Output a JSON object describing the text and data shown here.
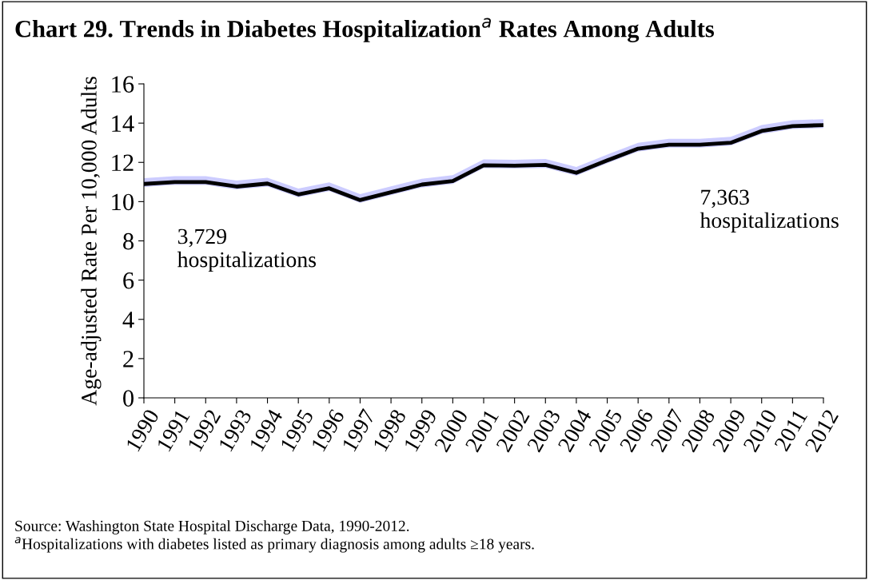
{
  "chart_data": {
    "type": "line",
    "title": "Chart 29. Trends in Diabetes Hospitalization$^{a}$ Rates Among Adults",
    "ylabel": "Age-adjusted Rate Per 10,000 Adults",
    "categories": [
      "1990",
      "1991",
      "1992",
      "1993",
      "1994",
      "1995",
      "1996",
      "1997",
      "1998",
      "1999",
      "2000",
      "2001",
      "2002",
      "2003",
      "2004",
      "2005",
      "2006",
      "2007",
      "2008",
      "2009",
      "2010",
      "2011",
      "2012"
    ],
    "series": [
      {
        "color": "#000000",
        "values": [
          10.9,
          11.0,
          11.0,
          10.77,
          10.92,
          10.37,
          10.68,
          10.08,
          10.48,
          10.87,
          11.05,
          11.85,
          11.83,
          11.87,
          11.47,
          12.1,
          12.7,
          12.9,
          12.9,
          13.0,
          13.6,
          13.85,
          13.9
        ],
        "lower": [
          10.75,
          10.85,
          10.85,
          10.62,
          10.77,
          10.22,
          10.53,
          9.93,
          10.33,
          10.72,
          10.9,
          11.7,
          11.68,
          11.72,
          11.32,
          11.95,
          12.55,
          12.75,
          12.75,
          12.85,
          13.45,
          13.7,
          13.75
        ],
        "upper": [
          11.2,
          11.3,
          11.3,
          11.07,
          11.22,
          10.67,
          10.98,
          10.38,
          10.78,
          11.17,
          11.35,
          12.15,
          12.13,
          12.17,
          11.77,
          12.4,
          13.0,
          13.2,
          13.2,
          13.3,
          13.9,
          14.15,
          14.2
        ]
      }
    ],
    "ylim": [
      0,
      16
    ],
    "yticks": [
      0,
      2,
      4,
      6,
      8,
      10,
      12,
      14,
      16
    ],
    "grid": false,
    "legend": false,
    "marker": "none",
    "line_style": "solid",
    "annotations": [
      {
        "text": "3,729\nhospitalizations",
        "x": "1990",
        "y": 10.9
      },
      {
        "text": "7,363\nhospitalizations",
        "x": "2008",
        "y": 12.9
      },
      "Source: Washington State Hospital Discharge Data, 1990-2012.",
      "$^{a}$Hospitalizations with diabetes listed as primary diagnosis among adults ≥18 years."
    ]
  }
}
